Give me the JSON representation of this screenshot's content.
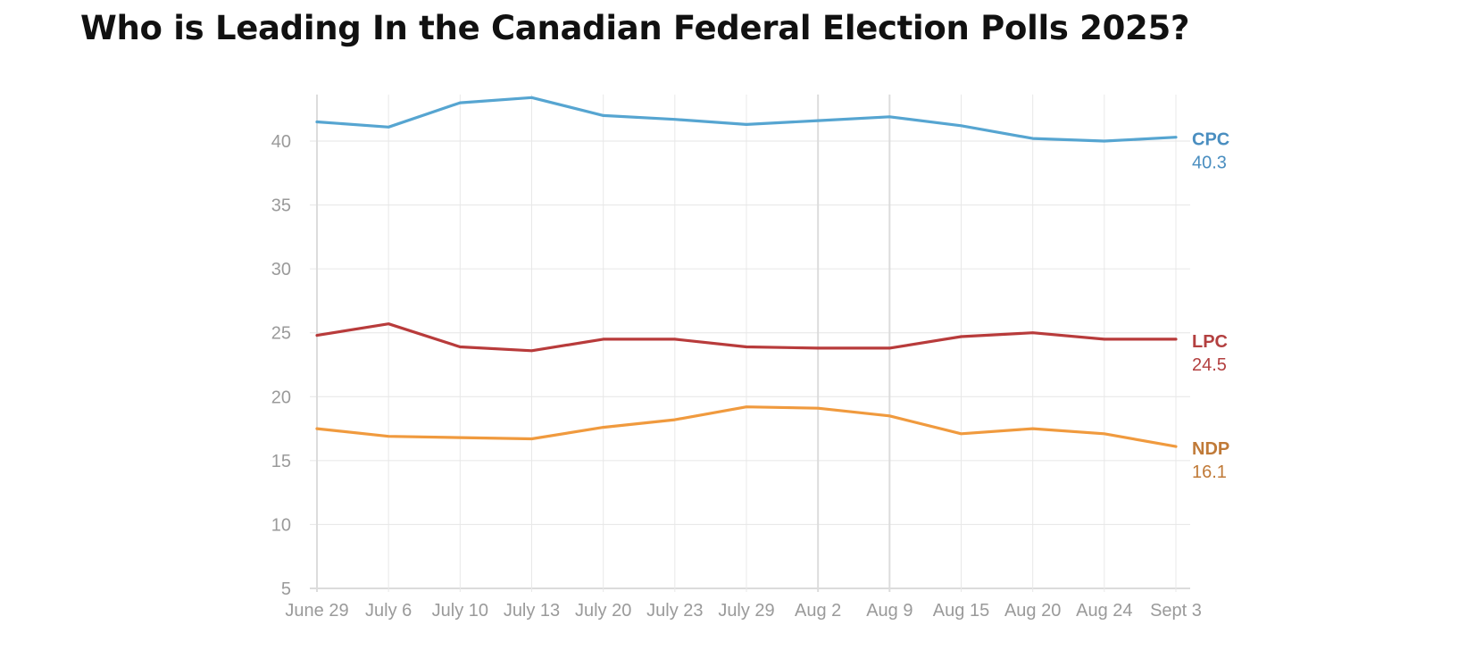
{
  "page": {
    "title": "Who is Leading In the Canadian Federal Election Polls 2025?"
  },
  "chart_data": {
    "type": "line",
    "title": "Who is Leading In the Canadian Federal Election Polls 2025?",
    "xlabel": "",
    "ylabel": "",
    "categories": [
      "June 29",
      "July 6",
      "July 10",
      "July 13",
      "July 20",
      "July 23",
      "July 29",
      "Aug 2",
      "Aug 9",
      "Aug 15",
      "Aug 20",
      "Aug 24",
      "Sept 3"
    ],
    "ylim": [
      5,
      43.5
    ],
    "yticks": [
      5,
      10,
      15,
      20,
      25,
      30,
      35,
      40
    ],
    "grid": true,
    "legend": "end-of-line labels (right)",
    "series": [
      {
        "name": "CPC",
        "color": "#56a5d1",
        "label_color": "#4a8ec0",
        "end_label": "40.3",
        "values": [
          41.5,
          41.1,
          43.0,
          43.4,
          42.0,
          41.7,
          41.3,
          41.6,
          41.9,
          41.2,
          40.2,
          40.0,
          40.3
        ]
      },
      {
        "name": "LPC",
        "color": "#b83b3b",
        "label_color": "#b34040",
        "end_label": "24.5",
        "values": [
          24.8,
          25.7,
          23.9,
          23.6,
          24.5,
          24.5,
          23.9,
          23.8,
          23.8,
          24.7,
          25.0,
          24.5,
          24.5
        ]
      },
      {
        "name": "NDP",
        "color": "#f09a3e",
        "label_color": "#c07a38",
        "end_label": "16.1",
        "values": [
          17.5,
          16.9,
          16.8,
          16.7,
          17.6,
          18.2,
          19.2,
          19.1,
          18.5,
          17.1,
          17.5,
          17.1,
          16.1
        ]
      }
    ]
  }
}
